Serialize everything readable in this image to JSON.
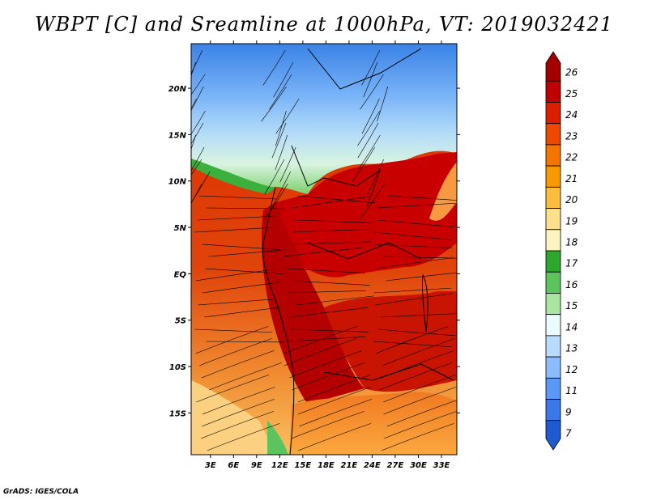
{
  "title": "WBPT [C] and Sreamline at 1000hPa, VT: 2019032421",
  "credit": "GrADS: IGES/COLA",
  "map": {
    "lon_ticks": [
      "3E",
      "6E",
      "9E",
      "12E",
      "15E",
      "18E",
      "21E",
      "24E",
      "27E",
      "30E",
      "33E"
    ],
    "lon_values": [
      3,
      6,
      9,
      12,
      15,
      18,
      21,
      24,
      27,
      30,
      33
    ],
    "lat_ticks": [
      "20N",
      "15N",
      "10N",
      "5N",
      "EQ",
      "5S",
      "10S",
      "15S"
    ],
    "lat_values": [
      20,
      15,
      10,
      5,
      0,
      -5,
      -10,
      -15
    ],
    "lon_range": [
      0.5,
      35
    ],
    "lat_range": [
      -19.5,
      24.8
    ]
  },
  "colorbar": {
    "labels": [
      "26",
      "25",
      "24",
      "23",
      "22",
      "21",
      "20",
      "19",
      "18",
      "17",
      "16",
      "15",
      "14",
      "13",
      "12",
      "11",
      "9",
      "7"
    ],
    "colors": [
      "#a50000",
      "#c00000",
      "#dc1e00",
      "#ec4800",
      "#f57400",
      "#fa9800",
      "#fdbd3c",
      "#fde08c",
      "#fff4c0",
      "#2da82d",
      "#5cc45c",
      "#a8e6a0",
      "#e8fbff",
      "#b8dcff",
      "#8cbcff",
      "#5a98f5",
      "#3a78ea",
      "#1e5ad2"
    ]
  }
}
